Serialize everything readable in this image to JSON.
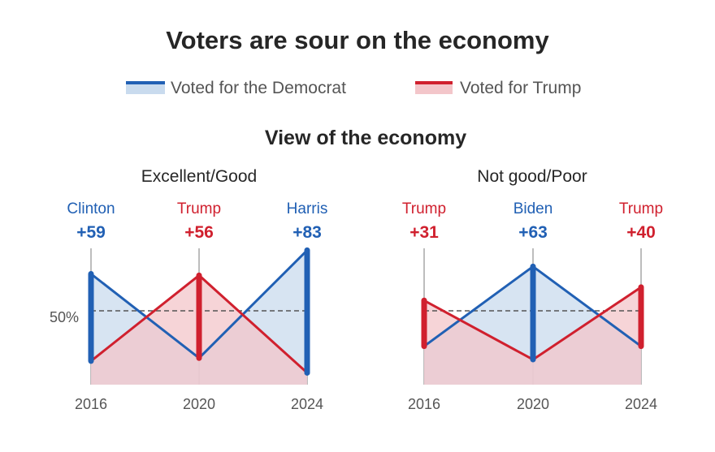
{
  "title": "Voters are sour on the economy",
  "subtitle": "View of the economy",
  "legend": [
    {
      "label": "Voted for the Democrat",
      "line_color": "#2160b4",
      "fill_color": "#c9dbee"
    },
    {
      "label": "Voted for Trump",
      "line_color": "#d0202e",
      "fill_color": "#f3c6ca"
    }
  ],
  "reference_label": "50%",
  "chart_data": [
    {
      "type": "line",
      "title": "Excellent/Good",
      "categories": [
        "2016",
        "2020",
        "2024"
      ],
      "ylim": [
        0,
        100
      ],
      "reference_line": 50,
      "series": [
        {
          "name": "Voted for the Democrat",
          "color": "#2160b4",
          "values": [
            75,
            18,
            91
          ]
        },
        {
          "name": "Voted for Trump",
          "color": "#d0202e",
          "values": [
            16,
            74,
            8
          ]
        }
      ],
      "annotations": [
        {
          "winner": "Clinton",
          "margin": "+59",
          "color": "#2160b4"
        },
        {
          "winner": "Trump",
          "margin": "+56",
          "color": "#d0202e"
        },
        {
          "winner": "Harris",
          "margin": "+83",
          "color": "#2160b4"
        }
      ]
    },
    {
      "type": "line",
      "title": "Not good/Poor",
      "categories": [
        "2016",
        "2020",
        "2024"
      ],
      "ylim": [
        0,
        100
      ],
      "reference_line": 50,
      "series": [
        {
          "name": "Voted for the Democrat",
          "color": "#2160b4",
          "values": [
            26,
            80,
            26
          ]
        },
        {
          "name": "Voted for Trump",
          "color": "#d0202e",
          "values": [
            57,
            17,
            66
          ]
        }
      ],
      "annotations": [
        {
          "winner": "Trump",
          "margin": "+31",
          "color": "#d0202e"
        },
        {
          "winner": "Biden",
          "margin": "+63",
          "color": "#2160b4"
        },
        {
          "winner": "Trump",
          "margin": "+40",
          "color": "#d0202e"
        }
      ]
    }
  ]
}
